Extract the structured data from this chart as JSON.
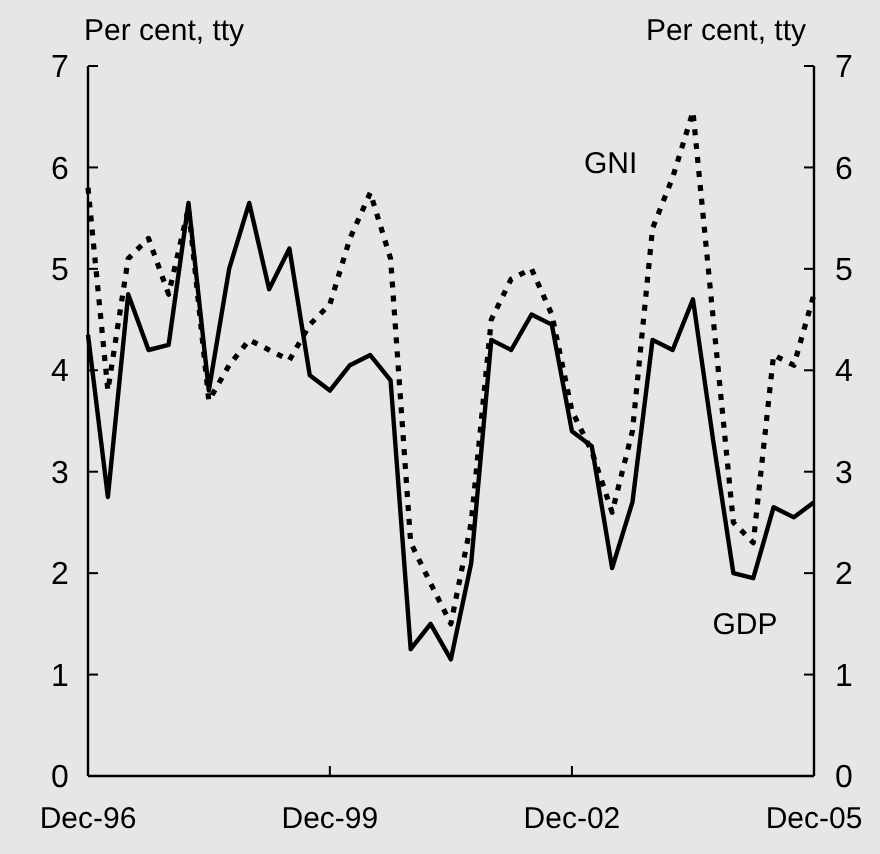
{
  "chart_data": {
    "type": "line",
    "ylabel": "Per cent, tty",
    "y2label": "Per cent, tty",
    "x": [
      "1996-12",
      "1997-03",
      "1997-06",
      "1997-09",
      "1997-12",
      "1998-03",
      "1998-06",
      "1998-09",
      "1998-12",
      "1999-03",
      "1999-06",
      "1999-09",
      "1999-12",
      "2000-03",
      "2000-06",
      "2000-09",
      "2000-12",
      "2001-03",
      "2001-06",
      "2001-09",
      "2001-12",
      "2002-03",
      "2002-06",
      "2002-09",
      "2002-12",
      "2003-03",
      "2003-06",
      "2003-09",
      "2003-12",
      "2004-03",
      "2004-06",
      "2004-09",
      "2004-12",
      "2005-03",
      "2005-06",
      "2005-09",
      "2005-12"
    ],
    "series": [
      {
        "name": "GDP",
        "color": "#000000",
        "line_style": "solid",
        "values": [
          4.35,
          2.75,
          4.75,
          4.2,
          4.25,
          5.65,
          3.8,
          5.0,
          5.65,
          4.8,
          5.2,
          3.95,
          3.8,
          4.05,
          4.15,
          3.9,
          1.25,
          1.5,
          1.15,
          2.1,
          4.3,
          4.2,
          4.55,
          4.45,
          3.4,
          3.25,
          2.05,
          2.7,
          4.3,
          4.2,
          4.7,
          3.3,
          2.0,
          1.95,
          2.65,
          2.55,
          2.7
        ]
      },
      {
        "name": "GNI",
        "color": "#000000",
        "line_style": "dotted",
        "values": [
          5.8,
          3.8,
          5.1,
          5.3,
          4.75,
          5.6,
          3.7,
          4.05,
          4.3,
          4.2,
          4.1,
          4.45,
          4.65,
          5.3,
          5.75,
          5.1,
          2.3,
          1.9,
          1.5,
          2.5,
          4.5,
          4.9,
          5.0,
          4.55,
          3.6,
          3.2,
          2.6,
          3.4,
          5.4,
          5.9,
          6.55,
          4.5,
          2.5,
          2.3,
          4.15,
          4.05,
          4.75
        ]
      }
    ],
    "xlim": [
      "1996-12",
      "2005-12"
    ],
    "xticks": [
      {
        "value": "1996-12",
        "label": "Dec-96"
      },
      {
        "value": "1999-12",
        "label": "Dec-99"
      },
      {
        "value": "2002-12",
        "label": "Dec-02"
      },
      {
        "value": "2005-12",
        "label": "Dec-05"
      }
    ],
    "ylim": [
      0,
      7
    ],
    "yticks": [
      0,
      1,
      2,
      3,
      4,
      5,
      6,
      7
    ],
    "y2lim": [
      0,
      7
    ],
    "y2ticks": [
      0,
      1,
      2,
      3,
      4,
      5,
      6,
      7
    ]
  }
}
